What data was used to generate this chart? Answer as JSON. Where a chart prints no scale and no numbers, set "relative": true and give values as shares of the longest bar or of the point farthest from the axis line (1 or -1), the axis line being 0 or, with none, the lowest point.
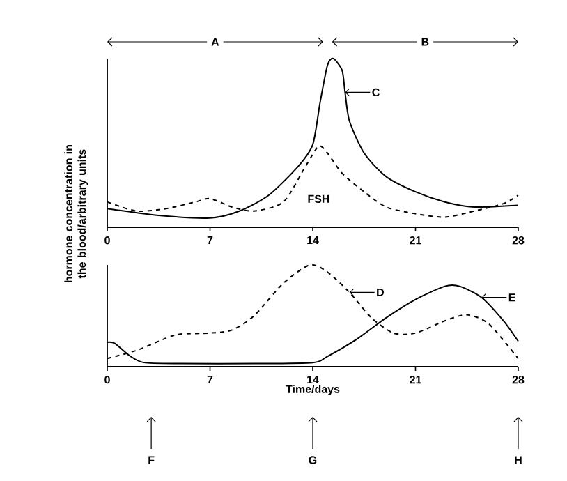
{
  "chart_data": [
    {
      "type": "line",
      "relative": true,
      "ylabel": "hormone concentration in the blood/arbitrary units",
      "xlim": [
        0,
        28
      ],
      "xticks": [
        0,
        7,
        14,
        21,
        28
      ],
      "tick_labels": "x",
      "x": [
        0,
        3.5,
        7,
        9,
        11,
        13,
        14,
        14.5,
        15,
        15.4,
        16,
        16.2,
        16.5,
        17.5,
        19,
        21,
        23,
        25,
        28
      ],
      "series": [
        {
          "color": "#000000",
          "line_style": "solid",
          "values": [
            0.11,
            0.07,
            0.055,
            0.096,
            0.19,
            0.36,
            0.49,
            0.74,
            0.96,
            1,
            0.93,
            0.8,
            0.63,
            0.44,
            0.3,
            0.21,
            0.15,
            0.12,
            0.13
          ]
        },
        {
          "name": "FSH",
          "color": "#000000",
          "line_style": "dashed",
          "x": [
            0,
            2,
            4,
            6,
            7,
            8.5,
            10,
            12,
            13.5,
            14.4,
            15,
            16,
            17.5,
            19,
            21,
            23,
            25,
            27,
            28
          ],
          "values": [
            0.15,
            0.096,
            0.11,
            0.15,
            0.17,
            0.12,
            0.096,
            0.15,
            0.36,
            0.48,
            0.44,
            0.32,
            0.21,
            0.12,
            0.08,
            0.06,
            0.096,
            0.14,
            0.19
          ]
        }
      ],
      "annotations": [
        "A",
        "B",
        {
          "text": "C",
          "x": 16.2,
          "y": 0.8
        }
      ]
    },
    {
      "type": "line",
      "relative": true,
      "xlabel": "Time/days",
      "xlim": [
        0,
        28
      ],
      "xticks": [
        0,
        7,
        14,
        21,
        28
      ],
      "tick_labels": "x",
      "series": [
        {
          "color": "#000000",
          "line_style": "dashed",
          "x": [
            0,
            2,
            4,
            5,
            7,
            8.5,
            10,
            12,
            13.8,
            15,
            16.5,
            18,
            19.5,
            21,
            23,
            24.5,
            26,
            28
          ],
          "values": [
            0.08,
            0.16,
            0.28,
            0.32,
            0.33,
            0.36,
            0.5,
            0.82,
            1,
            0.93,
            0.73,
            0.48,
            0.33,
            0.33,
            0.45,
            0.51,
            0.42,
            0.08
          ]
        },
        {
          "color": "#000000",
          "line_style": "solid",
          "x": [
            0,
            0.5,
            1.5,
            2.5,
            5,
            10,
            14,
            15,
            17,
            19,
            21,
            23,
            24,
            25.5,
            27,
            28
          ],
          "values": [
            0.24,
            0.23,
            0.11,
            0.04,
            0.03,
            0.03,
            0.04,
            0.1,
            0.27,
            0.48,
            0.66,
            0.79,
            0.79,
            0.68,
            0.45,
            0.25
          ]
        }
      ],
      "annotations": [
        {
          "text": "D",
          "x": 16.5,
          "y": 0.73
        },
        {
          "text": "E",
          "x": 25.5,
          "y": 0.68
        },
        "F",
        "G",
        "H"
      ]
    }
  ]
}
